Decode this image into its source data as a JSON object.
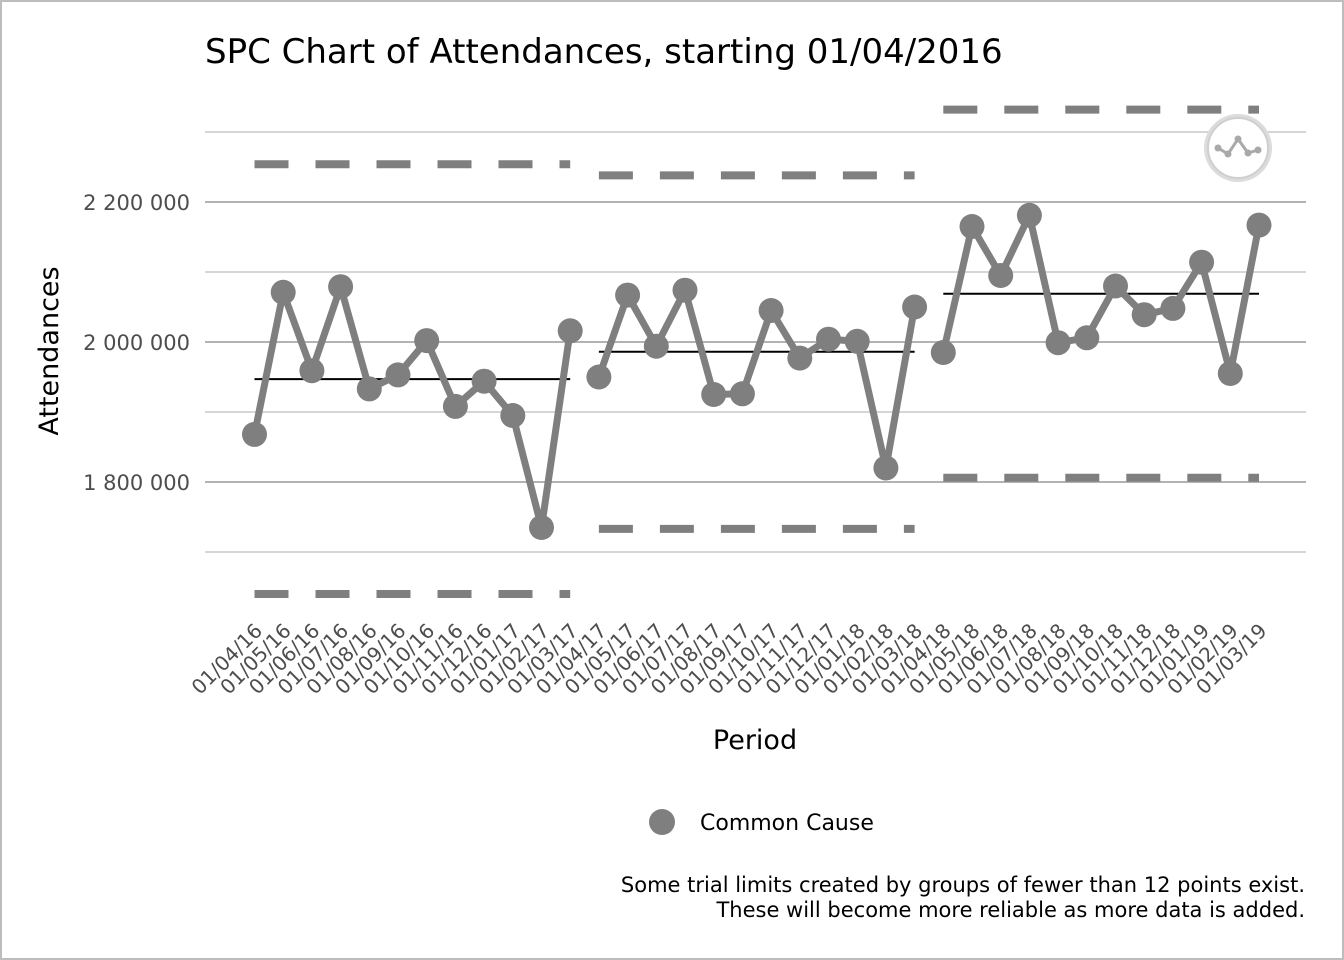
{
  "chart_data": {
    "type": "line",
    "title": "SPC Chart of Attendances, starting 01/04/2016",
    "xlabel": "Period",
    "ylabel": "Attendances",
    "ylim": [
      1620000,
      2360000
    ],
    "yticks": [
      1800000,
      2000000,
      2200000
    ],
    "ytick_labels": [
      "1 800 000",
      "2 000 000",
      "2 200 000"
    ],
    "grid": true,
    "legend_position": "bottom",
    "categories": [
      "01/04/16",
      "01/05/16",
      "01/06/16",
      "01/07/16",
      "01/08/16",
      "01/09/16",
      "01/10/16",
      "01/11/16",
      "01/12/16",
      "01/01/17",
      "01/02/17",
      "01/03/17",
      "01/04/17",
      "01/05/17",
      "01/06/17",
      "01/07/17",
      "01/08/17",
      "01/09/17",
      "01/10/17",
      "01/11/17",
      "01/12/17",
      "01/01/18",
      "01/02/18",
      "01/03/18",
      "01/04/18",
      "01/05/18",
      "01/06/18",
      "01/07/18",
      "01/08/18",
      "01/09/18",
      "01/10/18",
      "01/11/18",
      "01/12/18",
      "01/01/19",
      "01/02/19",
      "01/03/19"
    ],
    "series": [
      {
        "name": "Common Cause",
        "color": "#7f7f7f",
        "values": [
          1868000,
          2071000,
          1959000,
          2079000,
          1933000,
          1953000,
          2002000,
          1908000,
          1944000,
          1895000,
          1735000,
          2016000,
          1950000,
          2067000,
          1994000,
          2074000,
          1925000,
          1926000,
          2045000,
          1977000,
          2004000,
          2001000,
          1820000,
          2050000,
          1985000,
          2165000,
          2095000,
          2181000,
          1999000,
          2006000,
          2080000,
          2039000,
          2048000,
          2114000,
          1955000,
          2167000
        ]
      }
    ],
    "phases": [
      {
        "start": 0,
        "end": 11,
        "centre": 1947000,
        "upper_limit": 2254000,
        "lower_limit": 1640000
      },
      {
        "start": 12,
        "end": 23,
        "centre": 1986000,
        "upper_limit": 2238000,
        "lower_limit": 1733000
      },
      {
        "start": 24,
        "end": 35,
        "centre": 2069000,
        "upper_limit": 2332000,
        "lower_limit": 1806000
      }
    ],
    "legend": [
      {
        "label": "Common Cause",
        "color": "#7f7f7f"
      }
    ],
    "caption_lines": [
      "Some trial limits created by groups of fewer than 12 points exist.",
      "These will become more reliable as more data is added."
    ],
    "icon": "variation-common-cause-icon"
  }
}
